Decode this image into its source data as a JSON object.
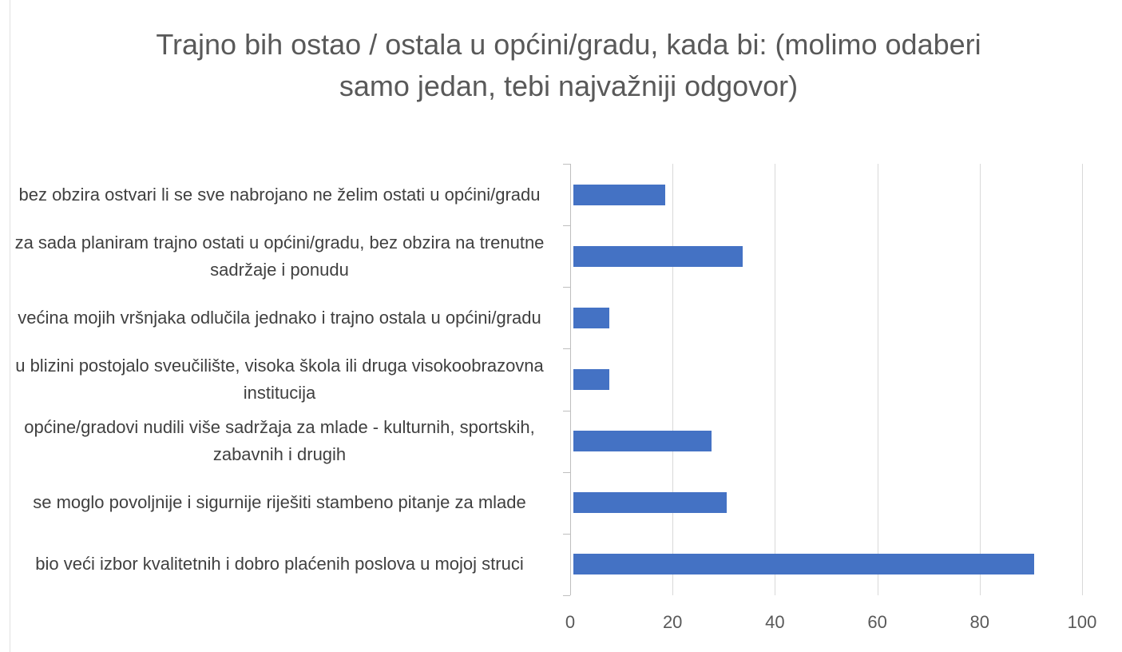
{
  "chart_data": {
    "type": "bar",
    "orientation": "horizontal",
    "title": "Trajno bih ostao / ostala u općini/gradu, kada bi: (molimo odaberi samo jedan, tebi najvažniji odgovor)",
    "categories": [
      "bez obzira ostvari li se sve nabrojano ne želim ostati u općini/gradu",
      "za sada planiram trajno ostati u općini/gradu, bez obzira na trenutne sadržaje i ponudu",
      "većina mojih vršnjaka odlučila jednako i trajno ostala u općini/gradu",
      "u blizini postojalo sveučilište, visoka škola ili druga visokoobrazovna institucija",
      "općine/gradovi nudili više sadržaja za mlade - kulturnih, sportskih, zabavnih i drugih",
      "se moglo povoljnije i sigurnije riješiti stambeno pitanje za mlade",
      "bio veći izbor kvalitetnih i dobro plaćenih poslova u mojoj struci"
    ],
    "values": [
      18,
      33,
      7,
      7,
      27,
      30,
      90
    ],
    "color": "#4472c4",
    "xlim": [
      0,
      100
    ],
    "xticks": [
      0,
      20,
      40,
      60,
      80,
      100
    ],
    "grid": true
  }
}
